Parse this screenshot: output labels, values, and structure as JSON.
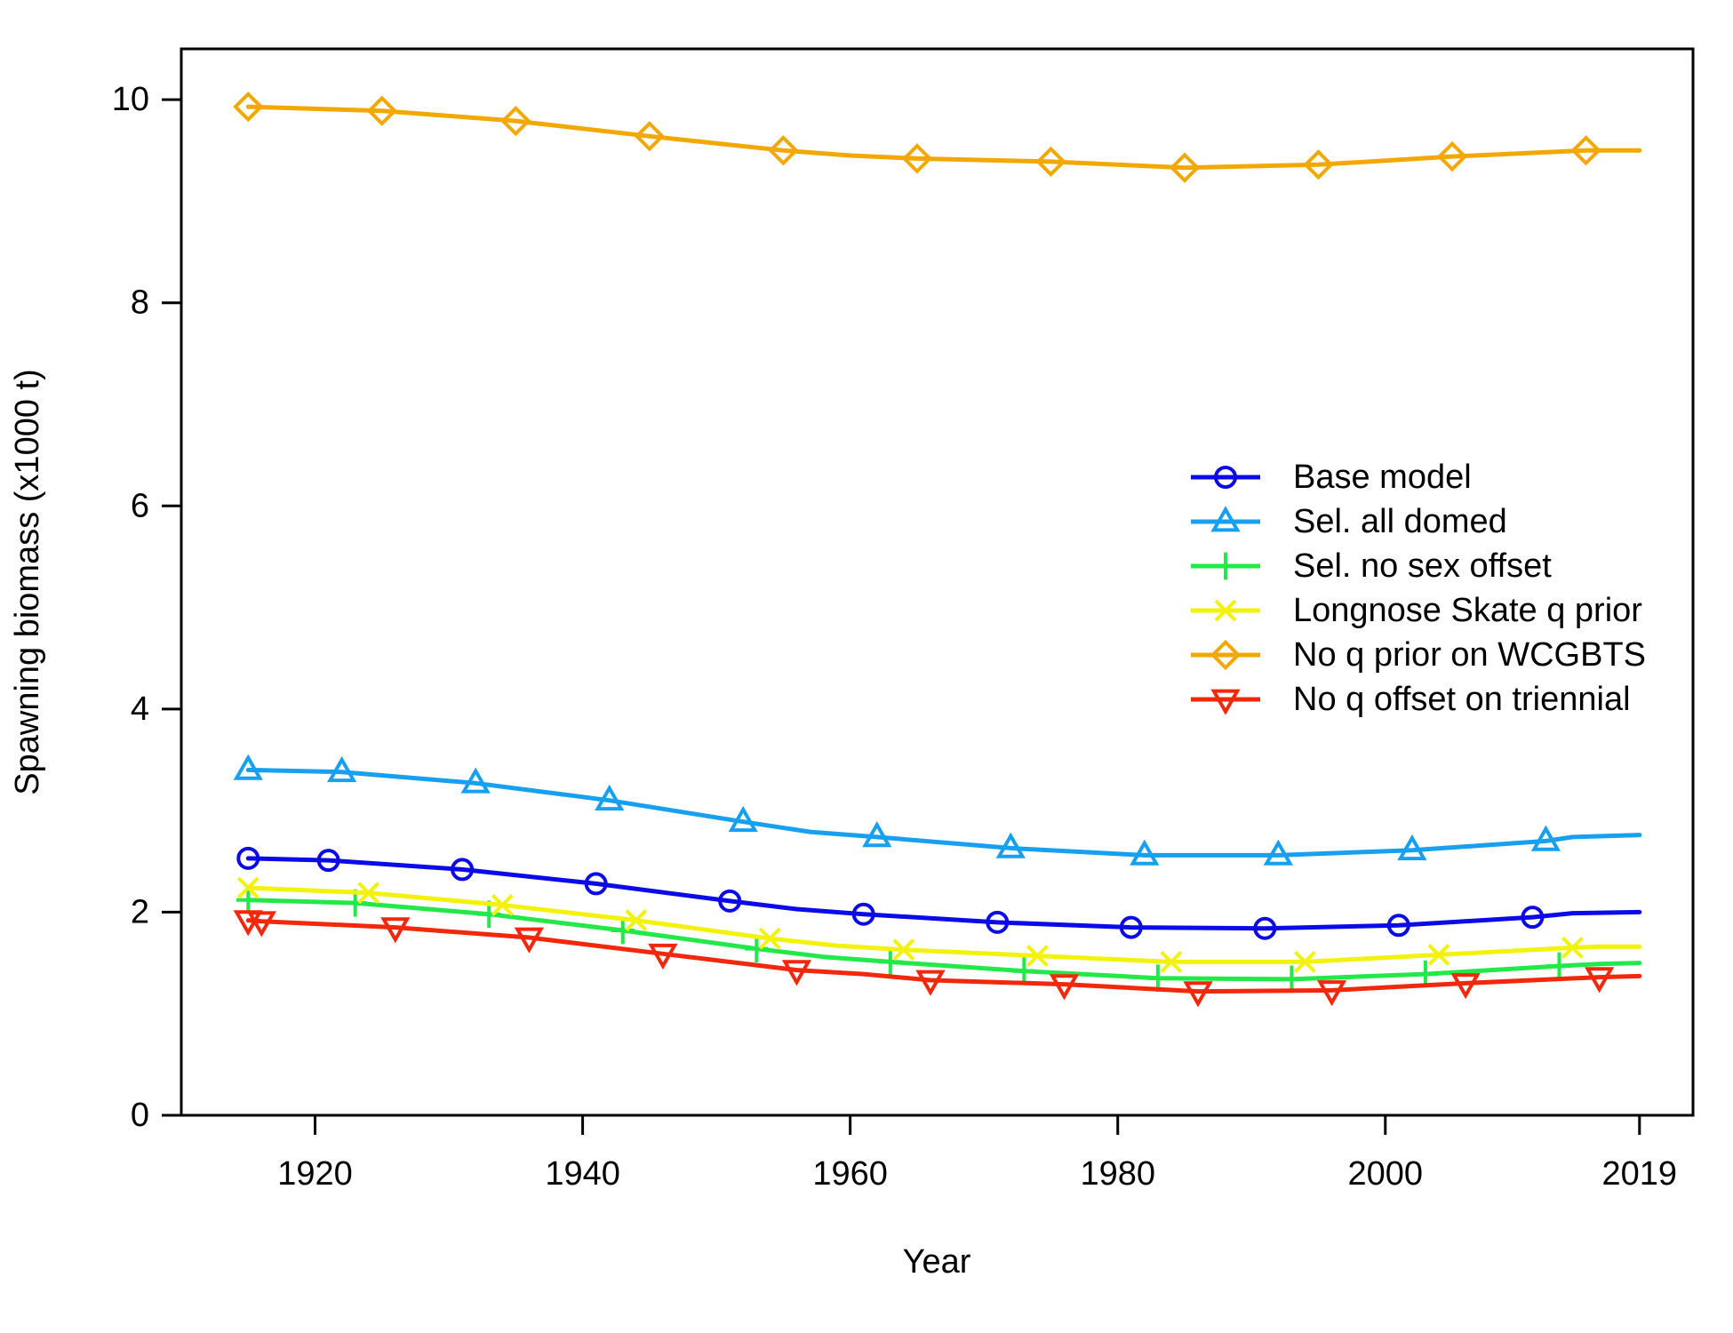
{
  "chart_data": {
    "type": "line",
    "title": "",
    "xlabel": "Year",
    "ylabel": "Spawning biomass (x1000 t)",
    "xlim": [
      1910,
      2023
    ],
    "ylim": [
      0,
      10.5
    ],
    "x_ticks": [
      1920,
      1940,
      1960,
      1980,
      2000,
      2019
    ],
    "y_ticks": [
      0,
      2,
      4,
      6,
      8,
      10
    ],
    "grid": false,
    "legend_position": "center-right",
    "series": [
      {
        "name": "Base model",
        "color": "#0b0be8",
        "marker": "circle",
        "x": [
          1915,
          1921,
          1931,
          1941,
          1951,
          1956,
          1961,
          1971,
          1981,
          1991,
          2001,
          2011,
          2014,
          2019
        ],
        "y": [
          2.53,
          2.51,
          2.42,
          2.28,
          2.11,
          2.03,
          1.98,
          1.9,
          1.85,
          1.84,
          1.87,
          1.95,
          1.99,
          2.0
        ],
        "markers_x": [
          1915,
          1921,
          1931,
          1941,
          1951,
          1961,
          1971,
          1981,
          1991,
          2001,
          2011
        ]
      },
      {
        "name": "Sel. all domed",
        "color": "#18a0f0",
        "marker": "triangle-up",
        "x": [
          1915,
          1922,
          1932,
          1942,
          1952,
          1957,
          1962,
          1972,
          1982,
          1992,
          2002,
          2012,
          2014,
          2019
        ],
        "y": [
          3.4,
          3.38,
          3.27,
          3.1,
          2.89,
          2.79,
          2.74,
          2.63,
          2.56,
          2.56,
          2.61,
          2.7,
          2.74,
          2.76
        ],
        "markers_x": [
          1915,
          1922,
          1932,
          1942,
          1952,
          1962,
          1972,
          1982,
          1992,
          2002,
          2012
        ]
      },
      {
        "name": "Sel. no sex offset",
        "color": "#22e84a",
        "marker": "plus",
        "x": [
          1915,
          1923,
          1933,
          1943,
          1953,
          1958,
          1963,
          1973,
          1983,
          1993,
          2003,
          2013,
          2016,
          2019
        ],
        "y": [
          2.12,
          2.09,
          1.98,
          1.82,
          1.64,
          1.56,
          1.51,
          1.42,
          1.35,
          1.34,
          1.39,
          1.47,
          1.49,
          1.5
        ],
        "markers_x": [
          1915,
          1923,
          1933,
          1943,
          1953,
          1963,
          1973,
          1983,
          1993,
          2003,
          2013
        ]
      },
      {
        "name": "Longnose Skate q prior",
        "color": "#f2f20c",
        "marker": "cross",
        "x": [
          1915,
          1924,
          1934,
          1944,
          1954,
          1959,
          1964,
          1974,
          1984,
          1994,
          2004,
          2014,
          2016,
          2019
        ],
        "y": [
          2.24,
          2.19,
          2.07,
          1.92,
          1.74,
          1.67,
          1.63,
          1.57,
          1.51,
          1.51,
          1.58,
          1.65,
          1.66,
          1.66
        ],
        "markers_x": [
          1915,
          1924,
          1934,
          1944,
          1954,
          1964,
          1974,
          1984,
          1994,
          2004,
          2014
        ]
      },
      {
        "name": "No q prior on WCGBTS",
        "color": "#f2a800",
        "marker": "diamond",
        "x": [
          1915,
          1925,
          1935,
          1945,
          1955,
          1960,
          1965,
          1975,
          1985,
          1995,
          2005,
          2015,
          2019
        ],
        "y": [
          9.93,
          9.89,
          9.79,
          9.64,
          9.5,
          9.45,
          9.42,
          9.39,
          9.33,
          9.36,
          9.44,
          9.5,
          9.5
        ],
        "markers_x": [
          1915,
          1925,
          1935,
          1945,
          1955,
          1965,
          1975,
          1985,
          1995,
          2005,
          2015
        ]
      },
      {
        "name": "No q offset on triennial",
        "color": "#f2280c",
        "marker": "triangle-down",
        "x": [
          1915,
          1916,
          1926,
          1936,
          1946,
          1956,
          1961,
          1966,
          1976,
          1986,
          1996,
          2006,
          2016,
          2019
        ],
        "y": [
          1.92,
          1.91,
          1.85,
          1.75,
          1.59,
          1.43,
          1.39,
          1.33,
          1.29,
          1.22,
          1.23,
          1.3,
          1.36,
          1.37
        ],
        "markers_x": [
          1915,
          1916,
          1926,
          1936,
          1946,
          1956,
          1966,
          1976,
          1986,
          1996,
          2006,
          2016
        ]
      }
    ]
  }
}
